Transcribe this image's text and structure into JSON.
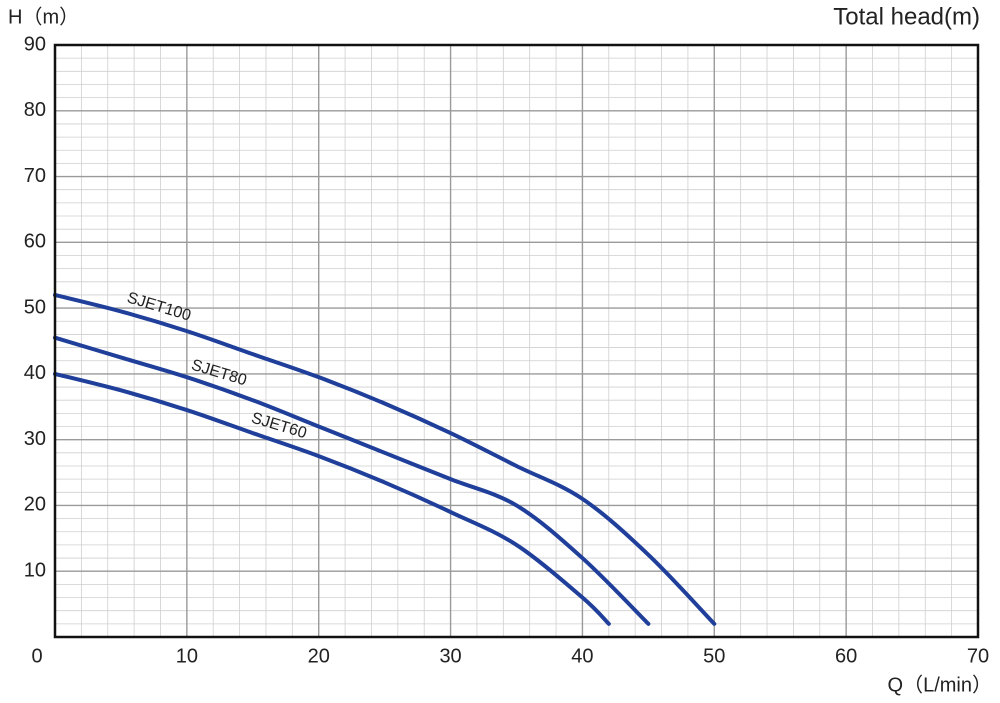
{
  "chart_data": {
    "type": "line",
    "title": "Total head(m)",
    "x_label": "Q（L/min）",
    "y_label": "H（m）",
    "xlim": [
      0,
      70
    ],
    "xticks": [
      0,
      10,
      20,
      30,
      40,
      50,
      60,
      70
    ],
    "ylim": [
      0,
      90
    ],
    "yticks": [
      10,
      20,
      30,
      40,
      50,
      60,
      70,
      80,
      90
    ],
    "grid": true,
    "minor_grid": true,
    "series": [
      {
        "name": "SJET100",
        "color": "#1f3f9a",
        "x": [
          0,
          5,
          10,
          15,
          20,
          25,
          30,
          35,
          40,
          45,
          50
        ],
        "values": [
          52,
          49.5,
          46.5,
          43,
          39.5,
          35.5,
          31,
          26,
          21,
          12.5,
          2
        ]
      },
      {
        "name": "SJET80",
        "color": "#1f3f9a",
        "x": [
          0,
          5,
          10,
          15,
          20,
          25,
          30,
          35,
          40,
          45
        ],
        "values": [
          45.5,
          42.5,
          39.5,
          36,
          32,
          28,
          24,
          20,
          12,
          2
        ]
      },
      {
        "name": "SJET60",
        "color": "#1f3f9a",
        "x": [
          0,
          5,
          10,
          15,
          20,
          25,
          30,
          35,
          40,
          42
        ],
        "values": [
          40,
          37.5,
          34.5,
          31,
          27.5,
          23.5,
          19,
          14,
          6,
          2
        ]
      }
    ]
  }
}
